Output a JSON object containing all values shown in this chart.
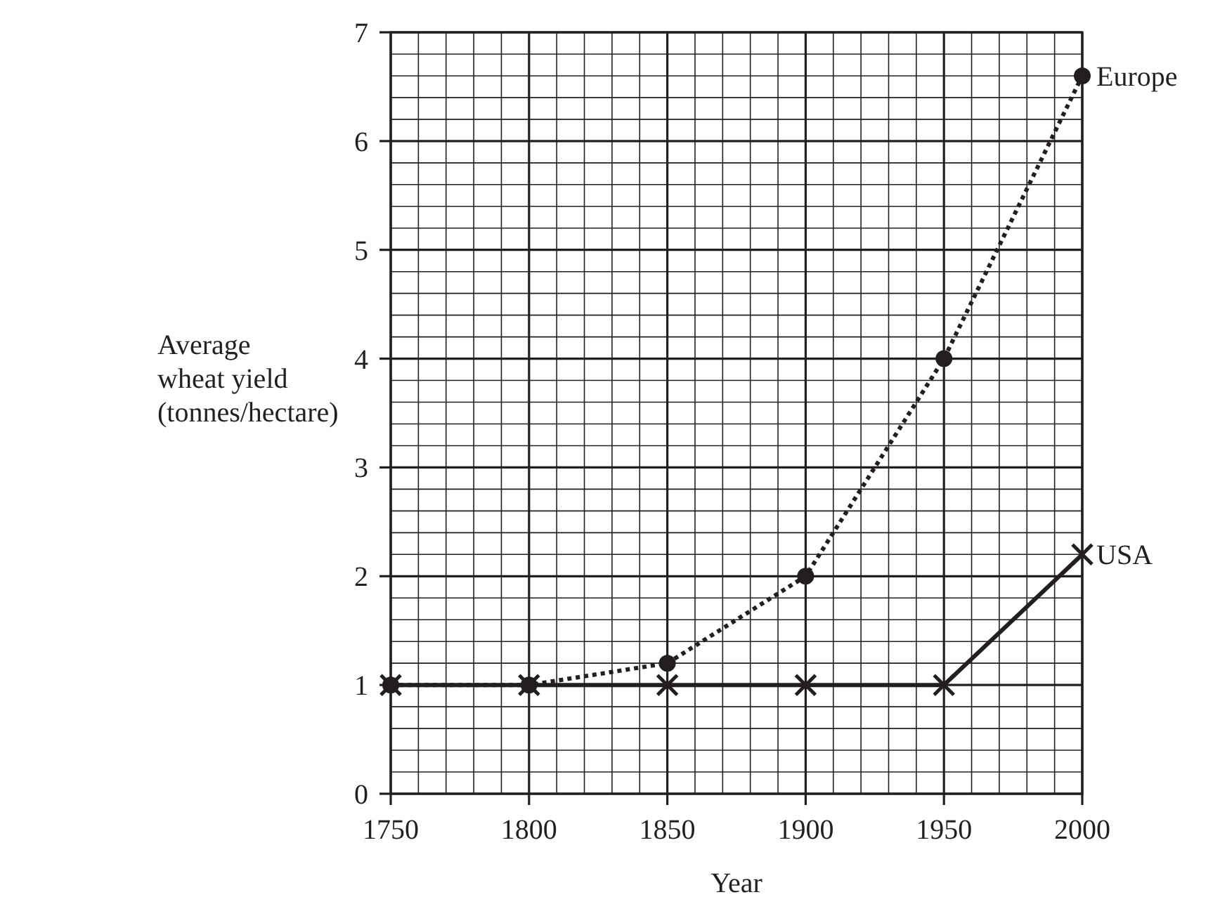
{
  "chart_data": {
    "type": "line",
    "xlabel": "Year",
    "ylabel": "Average\nwheat yield\n(tonnes/hectare)",
    "x": [
      1750,
      1800,
      1850,
      1900,
      1950,
      2000
    ],
    "series": [
      {
        "name": "Europe",
        "color": "#231f20",
        "values": [
          1,
          1,
          1.2,
          2,
          4,
          6.6
        ],
        "marker": "circle",
        "line_style": "dotted"
      },
      {
        "name": "USA",
        "color": "#231f20",
        "values": [
          1,
          1,
          1,
          1,
          1,
          2.2
        ],
        "marker": "cross",
        "line_style": "solid"
      }
    ],
    "xlim": [
      1750,
      2000
    ],
    "xticks": [
      1750,
      1800,
      1850,
      1900,
      1950,
      2000
    ],
    "ylim": [
      0,
      7
    ],
    "yticks": [
      0,
      1,
      2,
      3,
      4,
      5,
      6,
      7
    ],
    "grid": true
  }
}
